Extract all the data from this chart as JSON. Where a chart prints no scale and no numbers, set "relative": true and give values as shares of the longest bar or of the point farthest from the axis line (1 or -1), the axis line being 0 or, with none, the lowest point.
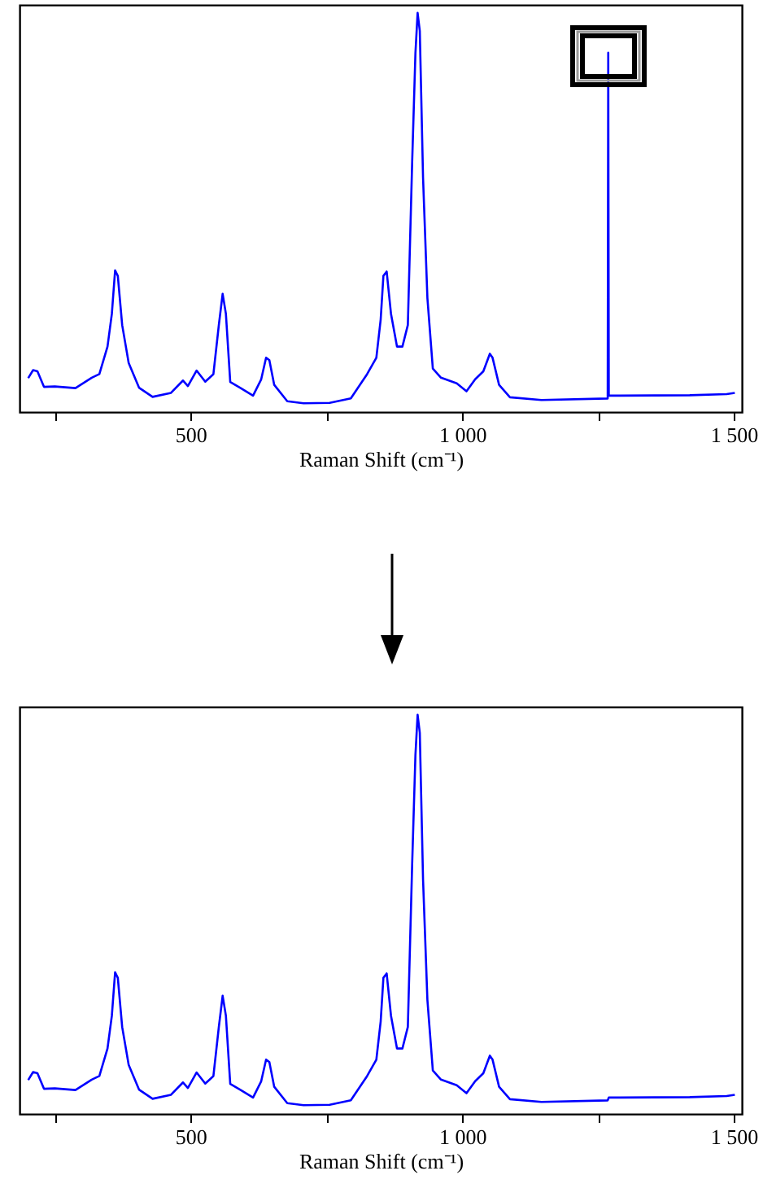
{
  "chart_data": [
    {
      "type": "line",
      "relative": true,
      "xlabel": "Raman Shift (cm⁻¹)",
      "xlim": [
        185,
        1515
      ],
      "xticks": [
        {
          "value": 250,
          "label": null
        },
        500,
        {
          "value": 750,
          "label": null
        },
        {
          "value": 1000,
          "label": "1 000"
        },
        {
          "value": 1250,
          "label": null
        },
        {
          "value": 1500,
          "label": "1 500"
        }
      ],
      "color": "#0000ff",
      "x": [
        201,
        210,
        218,
        230,
        250,
        288,
        318,
        332,
        347,
        355,
        361,
        366,
        374,
        386,
        405,
        430,
        464,
        486,
        495,
        511,
        527,
        542,
        552,
        559,
        565,
        573,
        591,
        615,
        630,
        639,
        645,
        654,
        678,
        708,
        756,
        795,
        825,
        842,
        850,
        855,
        861,
        869,
        880,
        890,
        900,
        908,
        914,
        918,
        922,
        928,
        936,
        946,
        961,
        990,
        1008,
        1024,
        1039,
        1051,
        1056,
        1068,
        1088,
        1146,
        1268,
        1269,
        1270,
        1419,
        1487,
        1502
      ],
      "values": [
        0.085,
        0.105,
        0.102,
        0.063,
        0.064,
        0.06,
        0.086,
        0.095,
        0.164,
        0.246,
        0.355,
        0.341,
        0.218,
        0.123,
        0.061,
        0.038,
        0.048,
        0.079,
        0.065,
        0.104,
        0.076,
        0.095,
        0.218,
        0.296,
        0.246,
        0.075,
        0.061,
        0.041,
        0.082,
        0.136,
        0.13,
        0.068,
        0.027,
        0.022,
        0.023,
        0.034,
        0.095,
        0.136,
        0.232,
        0.341,
        0.352,
        0.246,
        0.164,
        0.164,
        0.218,
        0.628,
        0.9,
        1.0,
        0.955,
        0.587,
        0.286,
        0.109,
        0.086,
        0.072,
        0.052,
        0.082,
        0.102,
        0.146,
        0.136,
        0.068,
        0.037,
        0.03,
        0.034,
        0.9,
        0.041,
        0.042,
        0.045,
        0.048
      ]
    },
    {
      "type": "line",
      "relative": true,
      "xlabel": "Raman Shift (cm⁻¹)",
      "xlim": [
        185,
        1515
      ],
      "xticks": [
        {
          "value": 250,
          "label": null
        },
        500,
        {
          "value": 750,
          "label": null
        },
        {
          "value": 1000,
          "label": "1 000"
        },
        {
          "value": 1250,
          "label": null
        },
        {
          "value": 1500,
          "label": "1 500"
        }
      ],
      "color": "#0000ff",
      "x": [
        201,
        210,
        218,
        230,
        250,
        288,
        318,
        332,
        347,
        355,
        361,
        366,
        374,
        386,
        405,
        430,
        464,
        486,
        495,
        511,
        527,
        542,
        552,
        559,
        565,
        573,
        591,
        615,
        630,
        639,
        645,
        654,
        678,
        708,
        756,
        795,
        825,
        842,
        850,
        855,
        861,
        869,
        880,
        890,
        900,
        908,
        914,
        918,
        922,
        928,
        936,
        946,
        961,
        990,
        1008,
        1024,
        1039,
        1051,
        1056,
        1068,
        1088,
        1146,
        1268,
        1270,
        1419,
        1487,
        1502
      ],
      "values": [
        0.085,
        0.105,
        0.102,
        0.063,
        0.064,
        0.06,
        0.086,
        0.095,
        0.164,
        0.246,
        0.355,
        0.341,
        0.218,
        0.123,
        0.061,
        0.038,
        0.048,
        0.079,
        0.065,
        0.104,
        0.076,
        0.095,
        0.218,
        0.296,
        0.246,
        0.075,
        0.061,
        0.041,
        0.082,
        0.136,
        0.13,
        0.068,
        0.027,
        0.022,
        0.023,
        0.034,
        0.095,
        0.136,
        0.232,
        0.341,
        0.352,
        0.246,
        0.164,
        0.164,
        0.218,
        0.628,
        0.9,
        1.0,
        0.955,
        0.587,
        0.286,
        0.109,
        0.086,
        0.072,
        0.052,
        0.082,
        0.102,
        0.146,
        0.136,
        0.068,
        0.037,
        0.03,
        0.034,
        0.041,
        0.042,
        0.045,
        0.048
      ]
    }
  ]
}
